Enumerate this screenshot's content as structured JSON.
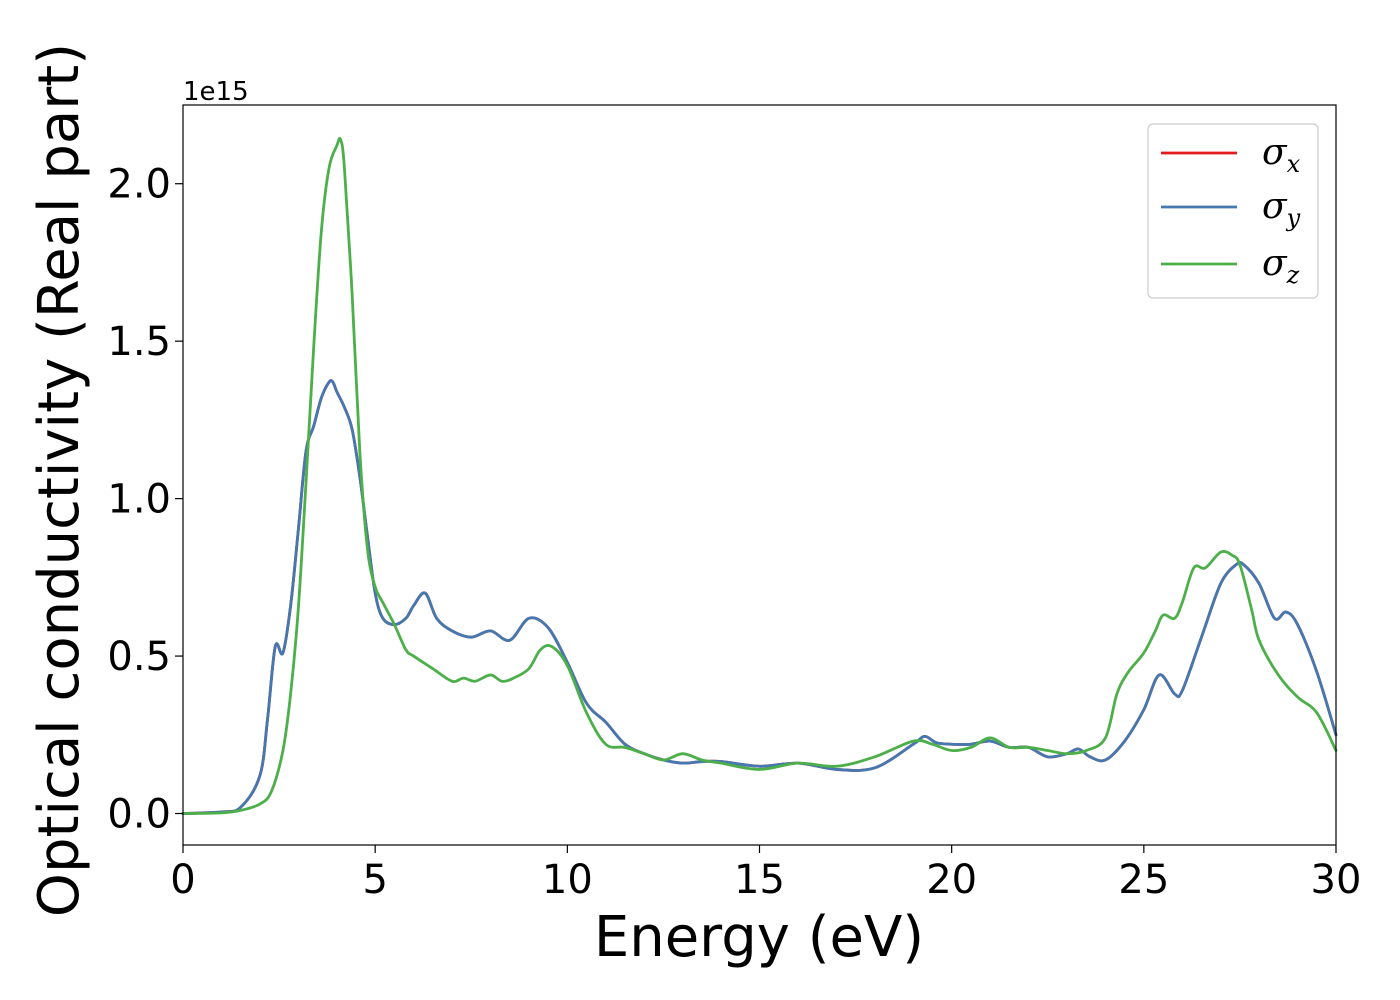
{
  "chart_data": {
    "type": "line",
    "xlabel": "Energy (eV)",
    "ylabel": "Optical conductivity (Real part)",
    "y_offset_label": "1e15",
    "xlim": [
      0,
      30
    ],
    "ylim": [
      -0.1,
      2.25
    ],
    "xticks": [
      0,
      5,
      10,
      15,
      20,
      25,
      30
    ],
    "xtick_labels": [
      "0",
      "5",
      "10",
      "15",
      "20",
      "25",
      "30"
    ],
    "yticks": [
      0.0,
      0.5,
      1.0,
      1.5,
      2.0
    ],
    "ytick_labels": [
      "0.0",
      "0.5",
      "1.0",
      "1.5",
      "2.0"
    ],
    "grid": false,
    "legend_position": "top-right",
    "series": [
      {
        "name": "σx",
        "label_symbol": "σ",
        "label_sub": "x",
        "color": "#e41a1c",
        "x": [
          0,
          1,
          1.5,
          2,
          2.2,
          2.4,
          2.6,
          2.8,
          3,
          3.2,
          3.4,
          3.6,
          3.8,
          3.9,
          4.0,
          4.2,
          4.4,
          4.6,
          4.8,
          5,
          5.2,
          5.5,
          5.8,
          6,
          6.3,
          6.6,
          7,
          7.5,
          8,
          8.5,
          9,
          9.5,
          10,
          10.5,
          11,
          11.5,
          12,
          12.5,
          13,
          13.5,
          14,
          15,
          16,
          17,
          18,
          19,
          19.3,
          19.6,
          20,
          20.5,
          21,
          21.5,
          22,
          22.5,
          23,
          23.3,
          23.6,
          24,
          24.5,
          25,
          25.4,
          25.8,
          26,
          26.5,
          27,
          27.4,
          27.6,
          28,
          28.4,
          28.7,
          29,
          29.5,
          30
        ],
        "y": [
          0.0,
          0.005,
          0.02,
          0.12,
          0.3,
          0.53,
          0.51,
          0.66,
          0.9,
          1.15,
          1.23,
          1.32,
          1.37,
          1.37,
          1.34,
          1.29,
          1.22,
          1.07,
          0.88,
          0.7,
          0.62,
          0.6,
          0.62,
          0.66,
          0.7,
          0.62,
          0.58,
          0.56,
          0.58,
          0.55,
          0.62,
          0.59,
          0.48,
          0.35,
          0.29,
          0.22,
          0.19,
          0.17,
          0.16,
          0.165,
          0.165,
          0.15,
          0.16,
          0.14,
          0.145,
          0.22,
          0.245,
          0.225,
          0.22,
          0.22,
          0.23,
          0.21,
          0.21,
          0.18,
          0.19,
          0.205,
          0.18,
          0.17,
          0.23,
          0.33,
          0.44,
          0.38,
          0.39,
          0.56,
          0.73,
          0.79,
          0.79,
          0.73,
          0.62,
          0.64,
          0.6,
          0.45,
          0.25
        ]
      },
      {
        "name": "σy",
        "label_symbol": "σ",
        "label_sub": "y",
        "color": "#4378b0",
        "x": [
          0,
          1,
          1.5,
          2,
          2.2,
          2.4,
          2.6,
          2.8,
          3,
          3.2,
          3.4,
          3.6,
          3.8,
          3.9,
          4.0,
          4.2,
          4.4,
          4.6,
          4.8,
          5,
          5.2,
          5.5,
          5.8,
          6,
          6.3,
          6.6,
          7,
          7.5,
          8,
          8.5,
          9,
          9.5,
          10,
          10.5,
          11,
          11.5,
          12,
          12.5,
          13,
          13.5,
          14,
          15,
          16,
          17,
          18,
          19,
          19.3,
          19.6,
          20,
          20.5,
          21,
          21.5,
          22,
          22.5,
          23,
          23.3,
          23.6,
          24,
          24.5,
          25,
          25.4,
          25.8,
          26,
          26.5,
          27,
          27.4,
          27.6,
          28,
          28.4,
          28.7,
          29,
          29.5,
          30
        ],
        "y": [
          0.0,
          0.005,
          0.02,
          0.12,
          0.3,
          0.53,
          0.51,
          0.66,
          0.9,
          1.15,
          1.23,
          1.32,
          1.37,
          1.37,
          1.34,
          1.29,
          1.22,
          1.07,
          0.88,
          0.7,
          0.62,
          0.6,
          0.62,
          0.66,
          0.7,
          0.62,
          0.58,
          0.56,
          0.58,
          0.55,
          0.62,
          0.59,
          0.48,
          0.35,
          0.29,
          0.22,
          0.19,
          0.17,
          0.16,
          0.165,
          0.165,
          0.15,
          0.16,
          0.14,
          0.145,
          0.22,
          0.245,
          0.225,
          0.22,
          0.22,
          0.23,
          0.21,
          0.21,
          0.18,
          0.19,
          0.205,
          0.18,
          0.17,
          0.23,
          0.33,
          0.44,
          0.38,
          0.39,
          0.56,
          0.73,
          0.79,
          0.79,
          0.73,
          0.62,
          0.64,
          0.6,
          0.45,
          0.25
        ]
      },
      {
        "name": "σz",
        "label_symbol": "σ",
        "label_sub": "z",
        "color": "#4daf4a",
        "x": [
          0,
          1,
          1.5,
          2,
          2.3,
          2.6,
          2.8,
          3,
          3.2,
          3.4,
          3.6,
          3.8,
          4.0,
          4.1,
          4.2,
          4.4,
          4.6,
          4.8,
          5,
          5.2,
          5.5,
          5.8,
          6,
          6.5,
          7,
          7.3,
          7.6,
          8,
          8.3,
          8.6,
          9,
          9.3,
          9.6,
          10,
          10.5,
          11,
          11.5,
          12,
          12.5,
          13,
          13.5,
          14,
          15,
          16,
          17,
          18,
          19,
          19.5,
          20,
          20.5,
          21,
          21.5,
          22,
          22.5,
          23,
          23.5,
          24,
          24.3,
          24.6,
          25,
          25.3,
          25.5,
          25.8,
          26,
          26.3,
          26.6,
          27,
          27.3,
          27.5,
          27.8,
          28,
          28.5,
          29,
          29.5,
          30
        ],
        "y": [
          0.0,
          0.002,
          0.01,
          0.03,
          0.07,
          0.2,
          0.38,
          0.65,
          1.05,
          1.48,
          1.85,
          2.05,
          2.12,
          2.14,
          2.05,
          1.65,
          1.15,
          0.84,
          0.72,
          0.67,
          0.6,
          0.52,
          0.5,
          0.46,
          0.42,
          0.43,
          0.42,
          0.44,
          0.42,
          0.43,
          0.46,
          0.52,
          0.53,
          0.47,
          0.32,
          0.22,
          0.21,
          0.19,
          0.17,
          0.19,
          0.17,
          0.16,
          0.14,
          0.16,
          0.15,
          0.18,
          0.23,
          0.22,
          0.2,
          0.21,
          0.24,
          0.21,
          0.21,
          0.2,
          0.19,
          0.2,
          0.24,
          0.38,
          0.45,
          0.51,
          0.58,
          0.63,
          0.62,
          0.67,
          0.78,
          0.78,
          0.83,
          0.82,
          0.79,
          0.65,
          0.55,
          0.44,
          0.37,
          0.32,
          0.2
        ]
      }
    ]
  }
}
